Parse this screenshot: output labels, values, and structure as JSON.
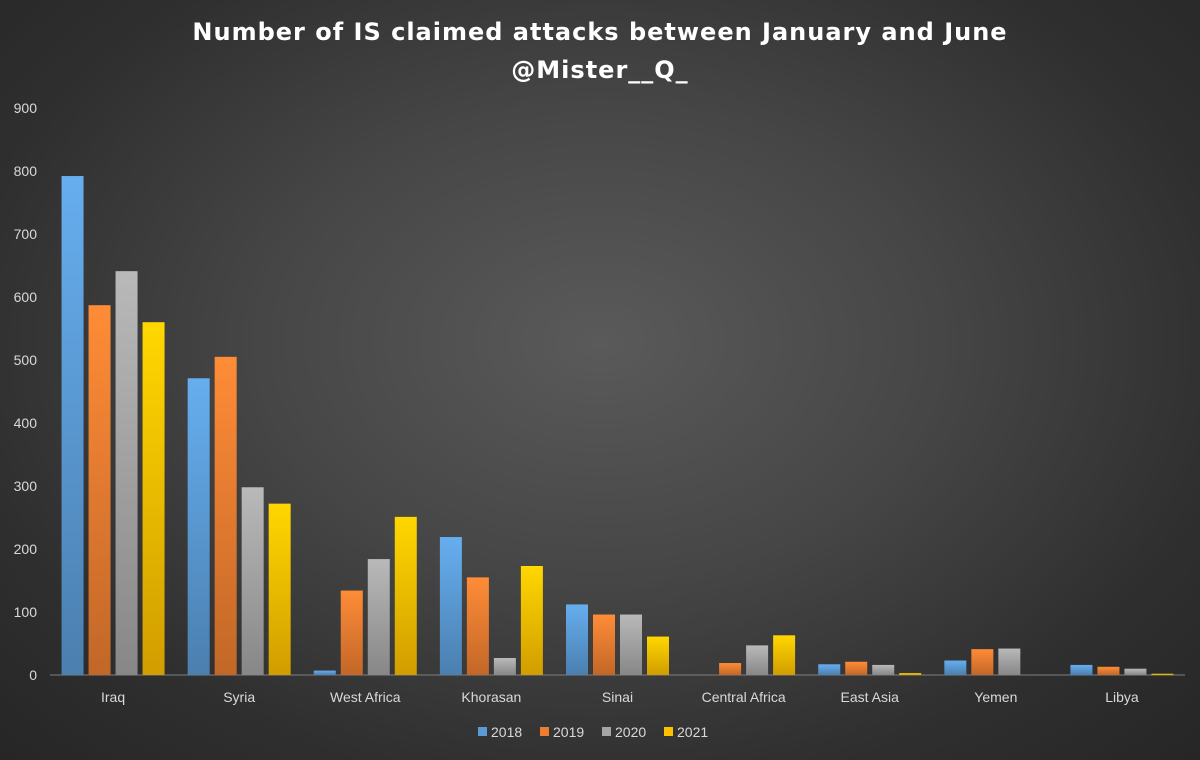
{
  "chart_data": {
    "type": "bar",
    "title": "Number of IS claimed attacks between January and June",
    "subtitle": "@Mister__Q_",
    "xlabel": "",
    "ylabel": "",
    "ylim": [
      0,
      900
    ],
    "yticks": [
      0,
      100,
      200,
      300,
      400,
      500,
      600,
      700,
      800,
      900
    ],
    "grid": false,
    "legend_position": "bottom",
    "categories": [
      "Iraq",
      "Syria",
      "West Africa",
      "Khorasan",
      "Sinai",
      "Central Africa",
      "East Asia",
      "Yemen",
      "Libya"
    ],
    "series": [
      {
        "name": "2018",
        "color": "#5b9bd5",
        "values": [
          792,
          471,
          7,
          219,
          112,
          0,
          17,
          23,
          16
        ]
      },
      {
        "name": "2019",
        "color": "#ed7d31",
        "values": [
          587,
          505,
          134,
          155,
          96,
          19,
          21,
          41,
          13
        ]
      },
      {
        "name": "2020",
        "color": "#a5a5a5",
        "values": [
          641,
          298,
          184,
          27,
          96,
          47,
          16,
          42,
          10
        ]
      },
      {
        "name": "2021",
        "color": "#ffc000",
        "values": [
          560,
          272,
          251,
          173,
          61,
          63,
          3,
          0,
          2
        ]
      }
    ]
  }
}
